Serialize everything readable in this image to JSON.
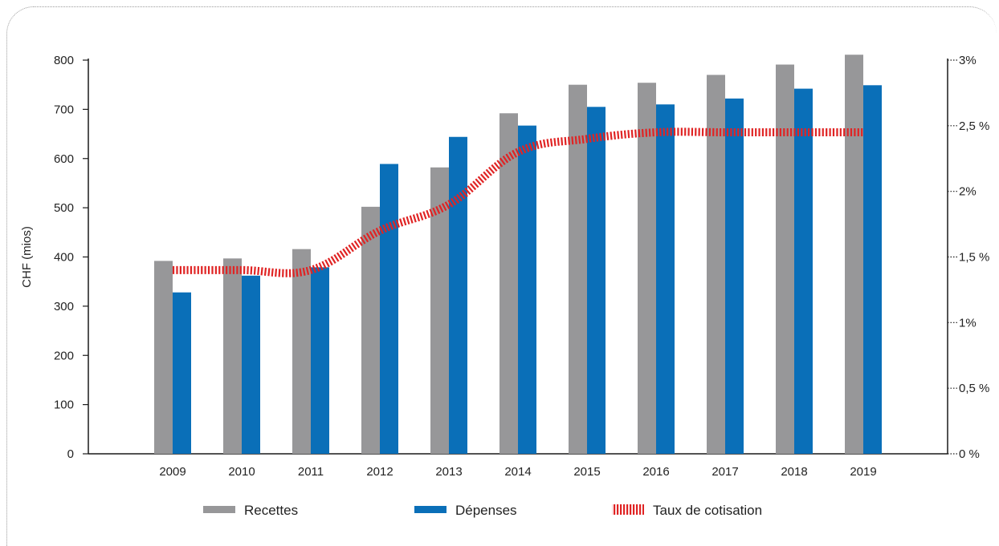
{
  "chart_data": {
    "type": "bar",
    "categories": [
      "2009",
      "2010",
      "2011",
      "2012",
      "2013",
      "2014",
      "2015",
      "2016",
      "2017",
      "2018",
      "2019"
    ],
    "series": [
      {
        "name": "Recettes",
        "type": "bar",
        "axis": "left",
        "color": "#979799",
        "values": [
          392,
          397,
          416,
          502,
          582,
          692,
          750,
          754,
          770,
          791,
          811
        ]
      },
      {
        "name": "Dépenses",
        "type": "bar",
        "axis": "left",
        "color": "#0a6fb8",
        "values": [
          328,
          362,
          379,
          589,
          644,
          667,
          705,
          710,
          722,
          742,
          749
        ]
      },
      {
        "name": "Taux de cotisation",
        "type": "line",
        "axis": "right",
        "color": "#e02424",
        "style": "hatched",
        "values": [
          1.4,
          1.4,
          1.4,
          1.7,
          1.9,
          2.3,
          2.4,
          2.45,
          2.45,
          2.45,
          2.45
        ]
      }
    ],
    "ylabel": "CHF (mios)",
    "ylim": [
      0,
      800
    ],
    "yticks": [
      "0",
      "100",
      "200",
      "300",
      "400",
      "500",
      "600",
      "700",
      "800"
    ],
    "y2lim": [
      0,
      3
    ],
    "y2ticks": [
      "0 %",
      "0,5 %",
      "1%",
      "1,5 %",
      "2%",
      "2,5 %",
      "3%"
    ],
    "grid": false,
    "legend_position": "bottom"
  }
}
